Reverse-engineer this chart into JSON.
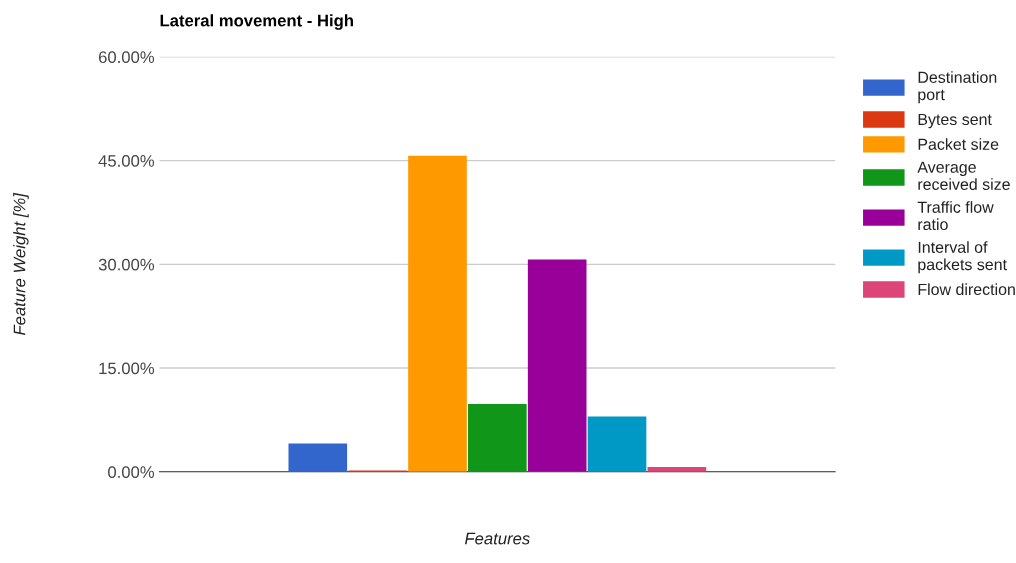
{
  "chart_data": {
    "type": "bar",
    "title": "Lateral movement - High",
    "xlabel": "Features",
    "ylabel": "Feature Weight [%]",
    "categories": [
      null
    ],
    "series": [
      {
        "name": "Destination port",
        "color": "#3366cc",
        "values": [
          4.1
        ]
      },
      {
        "name": "Bytes sent",
        "color": "#dc3912",
        "values": [
          0.2
        ]
      },
      {
        "name": "Packet size",
        "color": "#ff9900",
        "values": [
          45.7
        ]
      },
      {
        "name": "Average received size",
        "color": "#109618",
        "values": [
          9.8
        ]
      },
      {
        "name": "Traffic flow ratio",
        "color": "#990099",
        "values": [
          30.7
        ]
      },
      {
        "name": "Interval of packets sent",
        "color": "#0099c6",
        "values": [
          8.0
        ]
      },
      {
        "name": "Flow direction",
        "color": "#dd4477",
        "values": [
          0.7
        ]
      }
    ],
    "ylim": [
      0,
      60
    ],
    "yticks": [
      {
        "value": 0,
        "label": "0.00%"
      },
      {
        "value": 15,
        "label": "15.00%"
      },
      {
        "value": 30,
        "label": "30.00%"
      },
      {
        "value": 45,
        "label": "45.00%"
      },
      {
        "value": 60,
        "label": "60.00%"
      }
    ],
    "grid": "y",
    "legend": "right"
  }
}
